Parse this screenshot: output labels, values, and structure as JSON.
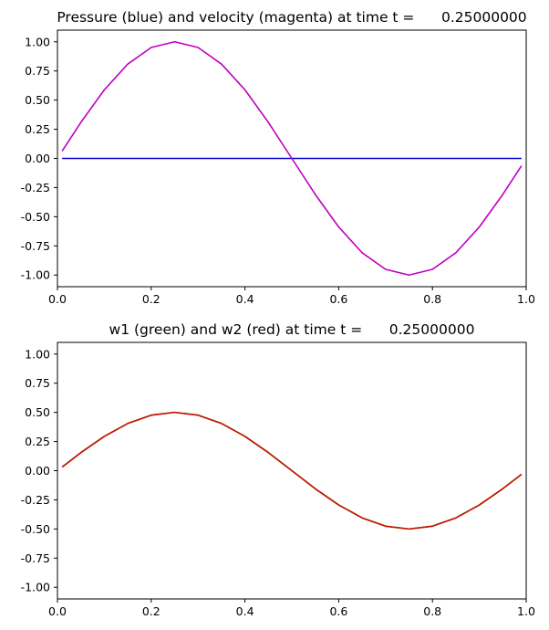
{
  "chart_data": [
    {
      "type": "line",
      "title": "Pressure (blue) and velocity (magenta) at time t =      0.25000000",
      "xlim": [
        0,
        1
      ],
      "ylim": [
        -1.1,
        1.1
      ],
      "xticks": [
        "0.0",
        "0.2",
        "0.4",
        "0.6",
        "0.8",
        "1.0"
      ],
      "yticks": [
        "1.00",
        "0.75",
        "0.50",
        "0.25",
        "0.00",
        "-0.25",
        "-0.50",
        "-0.75",
        "-1.00"
      ],
      "grid": false,
      "series": [
        {
          "color": "#0000cc",
          "x": [
            0.01,
            0.05,
            0.1,
            0.15,
            0.2,
            0.25,
            0.3,
            0.35,
            0.4,
            0.45,
            0.5,
            0.55,
            0.6,
            0.65,
            0.7,
            0.75,
            0.8,
            0.85,
            0.9,
            0.95,
            0.99
          ],
          "y": [
            0,
            0,
            0,
            0,
            0,
            0,
            0,
            0,
            0,
            0,
            0,
            0,
            0,
            0,
            0,
            0,
            0,
            0,
            0,
            0,
            0
          ]
        },
        {
          "color": "#bf00bf",
          "x": [
            0.01,
            0.05,
            0.1,
            0.15,
            0.2,
            0.25,
            0.3,
            0.35,
            0.4,
            0.45,
            0.5,
            0.55,
            0.6,
            0.65,
            0.7,
            0.75,
            0.8,
            0.85,
            0.9,
            0.95,
            0.99
          ],
          "y": [
            0.063,
            0.309,
            0.588,
            0.809,
            0.951,
            1.0,
            0.951,
            0.809,
            0.588,
            0.309,
            0.0,
            -0.309,
            -0.588,
            -0.809,
            -0.951,
            -1.0,
            -0.951,
            -0.809,
            -0.588,
            -0.309,
            -0.063
          ]
        }
      ]
    },
    {
      "type": "line",
      "title": "w1 (green) and w2 (red) at time t =      0.25000000",
      "xlim": [
        0,
        1
      ],
      "ylim": [
        -1.1,
        1.1
      ],
      "xticks": [
        "0.0",
        "0.2",
        "0.4",
        "0.6",
        "0.8",
        "1.0"
      ],
      "yticks": [
        "1.00",
        "0.75",
        "0.50",
        "0.25",
        "0.00",
        "-0.25",
        "-0.50",
        "-0.75",
        "-1.00"
      ],
      "grid": false,
      "series": [
        {
          "color": "#008000",
          "x": [
            0.01,
            0.05,
            0.1,
            0.15,
            0.2,
            0.25,
            0.3,
            0.35,
            0.4,
            0.45,
            0.5,
            0.55,
            0.6,
            0.65,
            0.7,
            0.75,
            0.8,
            0.85,
            0.9,
            0.95,
            0.99
          ],
          "y": [
            0.031,
            0.155,
            0.294,
            0.405,
            0.476,
            0.5,
            0.476,
            0.405,
            0.294,
            0.155,
            0.0,
            -0.155,
            -0.294,
            -0.405,
            -0.476,
            -0.5,
            -0.476,
            -0.405,
            -0.294,
            -0.155,
            -0.031
          ]
        },
        {
          "color": "#cc1100",
          "x": [
            0.01,
            0.05,
            0.1,
            0.15,
            0.2,
            0.25,
            0.3,
            0.35,
            0.4,
            0.45,
            0.5,
            0.55,
            0.6,
            0.65,
            0.7,
            0.75,
            0.8,
            0.85,
            0.9,
            0.95,
            0.99
          ],
          "y": [
            0.031,
            0.155,
            0.294,
            0.405,
            0.476,
            0.5,
            0.476,
            0.405,
            0.294,
            0.155,
            0.0,
            -0.155,
            -0.294,
            -0.405,
            -0.476,
            -0.5,
            -0.476,
            -0.405,
            -0.294,
            -0.155,
            -0.031
          ]
        }
      ]
    }
  ]
}
